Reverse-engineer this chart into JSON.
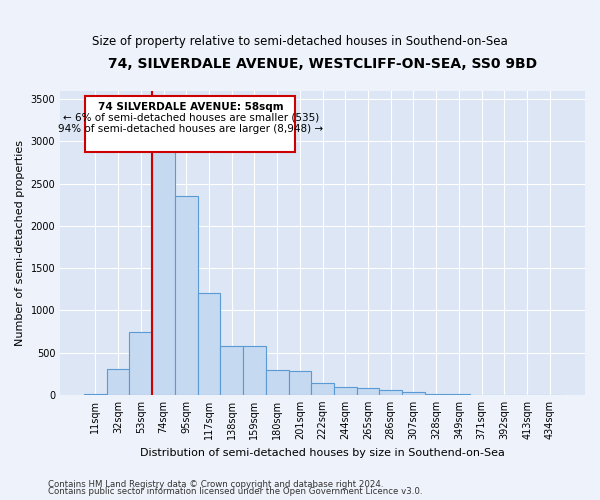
{
  "title": "74, SILVERDALE AVENUE, WESTCLIFF-ON-SEA, SS0 9BD",
  "subtitle": "Size of property relative to semi-detached houses in Southend-on-Sea",
  "xlabel": "Distribution of semi-detached houses by size in Southend-on-Sea",
  "ylabel": "Number of semi-detached properties",
  "footer1": "Contains HM Land Registry data © Crown copyright and database right 2024.",
  "footer2": "Contains public sector information licensed under the Open Government Licence v3.0.",
  "annotation_title": "74 SILVERDALE AVENUE: 58sqm",
  "annotation_line1": "← 6% of semi-detached houses are smaller (535)",
  "annotation_line2": "94% of semi-detached houses are larger (8,948) →",
  "bar_edge_color": "#5b9bd5",
  "bar_face_color": "#c5d9f1",
  "redline_color": "#cc0000",
  "categories": [
    "11sqm",
    "32sqm",
    "53sqm",
    "74sqm",
    "95sqm",
    "117sqm",
    "138sqm",
    "159sqm",
    "180sqm",
    "201sqm",
    "222sqm",
    "244sqm",
    "265sqm",
    "286sqm",
    "307sqm",
    "328sqm",
    "349sqm",
    "371sqm",
    "392sqm",
    "413sqm",
    "434sqm"
  ],
  "values": [
    5,
    310,
    745,
    3300,
    2350,
    1200,
    580,
    580,
    290,
    285,
    140,
    90,
    75,
    60,
    30,
    10,
    5,
    3,
    2,
    1,
    1
  ],
  "ylim": [
    0,
    3600
  ],
  "yticks": [
    0,
    500,
    1000,
    1500,
    2000,
    2500,
    3000,
    3500
  ],
  "redline_x": 2.5,
  "bg_color": "#eef2fa",
  "plot_bg_color": "#dce6f5",
  "grid_color": "#ffffff",
  "title_fontsize": 10,
  "subtitle_fontsize": 8.5,
  "tick_fontsize": 7,
  "ylabel_fontsize": 8,
  "xlabel_fontsize": 8,
  "footer_fontsize": 6.2
}
